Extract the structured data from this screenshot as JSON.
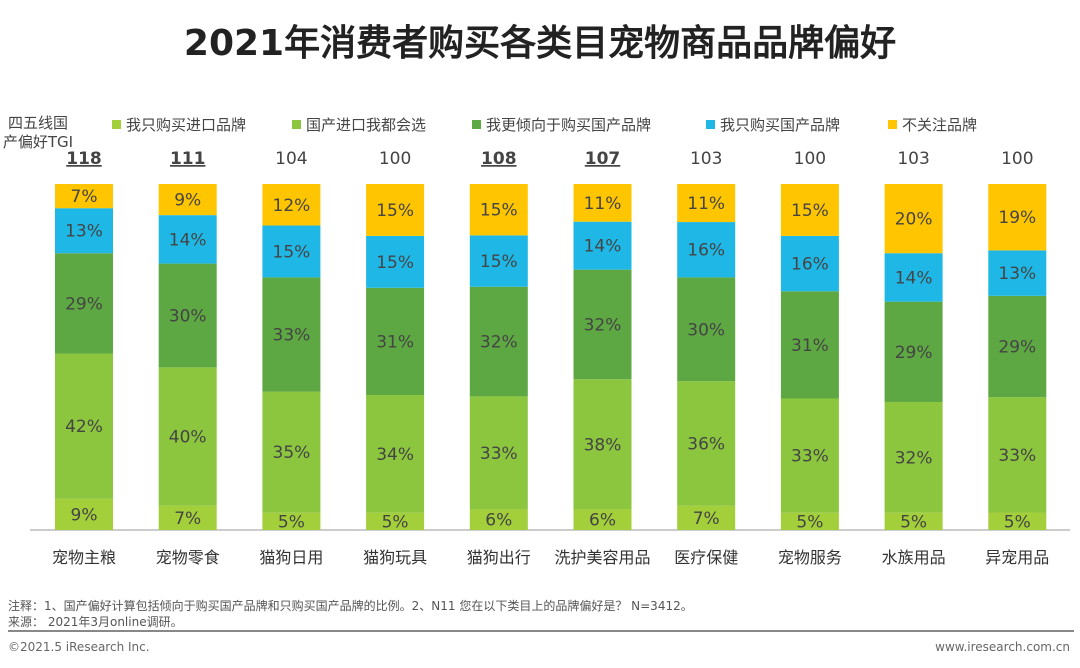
{
  "chart_data": {
    "type": "bar",
    "stacked": true,
    "percent": true,
    "title": "2021年消费者购买各类目宠物商品品牌偏好",
    "categories": [
      "宠物主粮",
      "宠物零食",
      "猫狗日用",
      "猫狗玩具",
      "猫狗出行",
      "洗护美容用品",
      "医疗保健",
      "宠物服务",
      "水族用品",
      "异宠用品"
    ],
    "series": [
      {
        "name": "我只购买进口品牌",
        "color": "#a3cf3b",
        "values": [
          9,
          7,
          5,
          5,
          6,
          6,
          7,
          5,
          5,
          5
        ]
      },
      {
        "name": "国产进口我都会选",
        "color": "#8cc63f",
        "values": [
          42,
          40,
          35,
          34,
          33,
          38,
          36,
          33,
          32,
          33
        ]
      },
      {
        "name": "我更倾向于购买国产品牌",
        "color": "#5ea843",
        "values": [
          29,
          30,
          33,
          31,
          32,
          32,
          30,
          31,
          29,
          29
        ]
      },
      {
        "name": "我只购买国产品牌",
        "color": "#1fb8e6",
        "values": [
          13,
          14,
          15,
          15,
          15,
          14,
          16,
          16,
          14,
          13
        ]
      },
      {
        "name": "不关注品牌",
        "color": "#ffc600",
        "values": [
          7,
          9,
          12,
          15,
          15,
          11,
          11,
          15,
          20,
          19
        ]
      }
    ],
    "tgi": {
      "label": "四五线国产偏好TGI",
      "values": [
        118,
        111,
        104,
        100,
        108,
        107,
        103,
        100,
        103,
        100
      ],
      "highlighted": [
        true,
        true,
        false,
        false,
        true,
        true,
        false,
        false,
        false,
        false
      ]
    },
    "legend_position": "top",
    "grid": false
  },
  "notes": {
    "note": "注释：1、国产偏好计算包括倾向于购买国产品牌和只购买国产品牌的比例。2、N11 您在以下类目上的品牌偏好是？ N=3412。",
    "source": "来源： 2021年3月online调研。"
  },
  "footer": {
    "left": "©2021.5 iResearch Inc.",
    "right": "www.iresearch.com.cn"
  }
}
